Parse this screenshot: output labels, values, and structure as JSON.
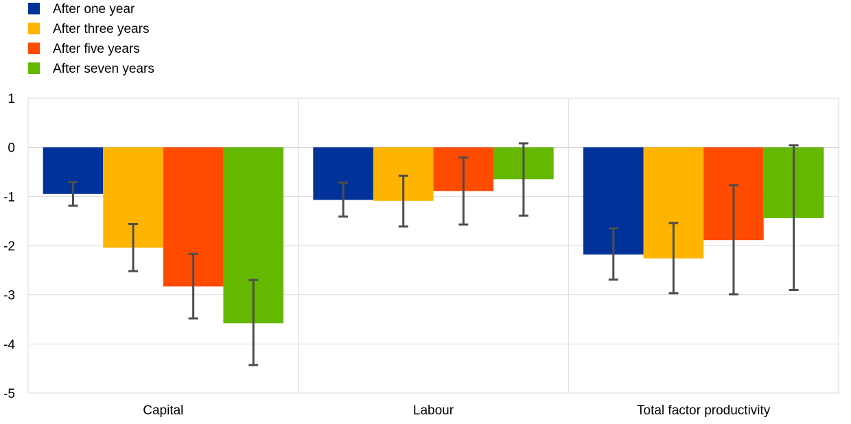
{
  "chart_data": {
    "type": "bar",
    "categories": [
      "Capital",
      "Labour",
      "Total factor productivity"
    ],
    "series": [
      {
        "name": "After one year",
        "color": "#003299",
        "values": [
          -0.95,
          -1.07,
          -2.18
        ],
        "error_low": [
          -1.19,
          -1.41,
          -2.69
        ],
        "error_high": [
          -0.71,
          -0.72,
          -1.65
        ]
      },
      {
        "name": "After three years",
        "color": "#FFB400",
        "values": [
          -2.04,
          -1.09,
          -2.26
        ],
        "error_low": [
          -2.52,
          -1.61,
          -2.97
        ],
        "error_high": [
          -1.56,
          -0.58,
          -1.54
        ]
      },
      {
        "name": "After five years",
        "color": "#FF4B00",
        "values": [
          -2.83,
          -0.89,
          -1.89
        ],
        "error_low": [
          -3.48,
          -1.57,
          -2.99
        ],
        "error_high": [
          -2.17,
          -0.21,
          -0.77
        ]
      },
      {
        "name": "After seven years",
        "color": "#65B800",
        "values": [
          -3.58,
          -0.65,
          -1.44
        ],
        "error_low": [
          -4.43,
          -1.39,
          -2.9
        ],
        "error_high": [
          -2.7,
          0.08,
          0.04
        ]
      }
    ],
    "ylim": [
      -5,
      1
    ],
    "yticks": [
      1,
      0,
      -1,
      -2,
      -3,
      -4,
      -5
    ],
    "grid": true,
    "legend_position": "top-left",
    "error_bar_color": "#4d4d4d",
    "title": "",
    "xlabel": "",
    "ylabel": ""
  }
}
